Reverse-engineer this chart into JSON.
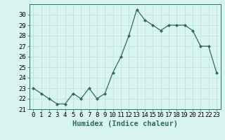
{
  "x": [
    0,
    1,
    2,
    3,
    4,
    5,
    6,
    7,
    8,
    9,
    10,
    11,
    12,
    13,
    14,
    15,
    16,
    17,
    18,
    19,
    20,
    21,
    22,
    23
  ],
  "y": [
    23.0,
    22.5,
    22.0,
    21.5,
    21.5,
    22.5,
    22.0,
    23.0,
    22.0,
    22.5,
    24.5,
    26.0,
    28.0,
    30.5,
    29.5,
    29.0,
    28.5,
    29.0,
    29.0,
    29.0,
    28.5,
    27.0,
    27.0,
    24.5
  ],
  "xlabel": "Humidex (Indice chaleur)",
  "ylim": [
    21.0,
    31.0
  ],
  "xlim": [
    -0.5,
    23.5
  ],
  "yticks": [
    21,
    22,
    23,
    24,
    25,
    26,
    27,
    28,
    29,
    30
  ],
  "xticks": [
    0,
    1,
    2,
    3,
    4,
    5,
    6,
    7,
    8,
    9,
    10,
    11,
    12,
    13,
    14,
    15,
    16,
    17,
    18,
    19,
    20,
    21,
    22,
    23
  ],
  "line_color": "#2e6b5e",
  "marker": "D",
  "marker_size": 2.0,
  "bg_color": "#d8f5f0",
  "grid_color": "#c0ddd8",
  "tick_fontsize": 6.5,
  "xlabel_fontsize": 7.5,
  "xlabel_fontweight": "bold"
}
